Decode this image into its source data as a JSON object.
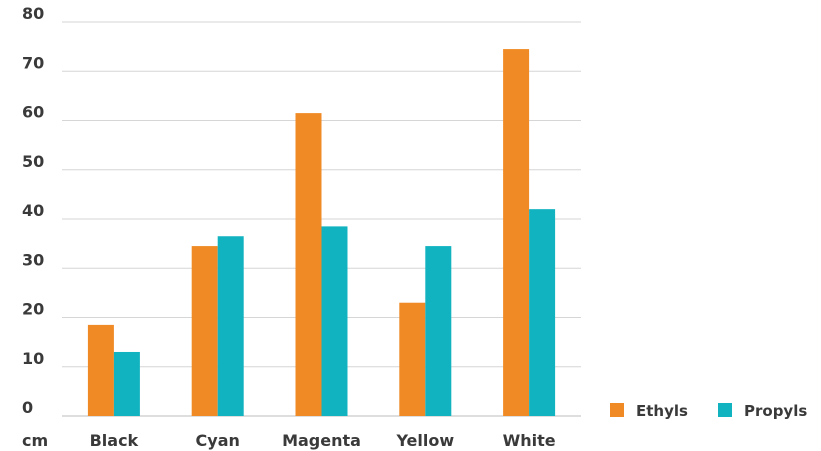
{
  "chart_data": {
    "type": "bar",
    "title": "",
    "xlabel": "",
    "ylabel": "",
    "unit_label": "cm",
    "categories": [
      "Black",
      "Cyan",
      "Magenta",
      "Yellow",
      "White"
    ],
    "series": [
      {
        "name": "Ethyls",
        "color": "#f08a24",
        "values": [
          18.5,
          34.5,
          61.5,
          23,
          74.5
        ]
      },
      {
        "name": "Propyls",
        "color": "#12b3c0",
        "values": [
          13,
          36.5,
          38.5,
          34.5,
          42
        ]
      }
    ],
    "ylim": [
      0,
      80
    ],
    "yticks": [
      0,
      10,
      20,
      30,
      40,
      50,
      60,
      70,
      80
    ],
    "grid": true,
    "legend_position": "bottom-right"
  }
}
